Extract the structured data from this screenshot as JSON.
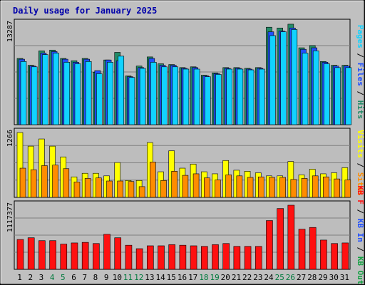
{
  "colors": {
    "background": "#c0c0c0",
    "plot": "#bdbdbd",
    "weekday_label": "#000000",
    "weekend_label": "#007a3d",
    "hits": "#238b67",
    "files": "#1f4fff",
    "pages": "#11d2ff",
    "visits": "#ffff00",
    "sites": "#ff8c00",
    "kbytes": "#ff1010"
  },
  "chart_data": [
    {
      "type": "bar",
      "title": "Daily usage for January 2025",
      "y_max_label": "13287",
      "ylim": [
        0,
        13287
      ],
      "right_axis_label": [
        {
          "text": "Pages",
          "color": "#11d2ff"
        },
        {
          "text": " / ",
          "color": "#000000"
        },
        {
          "text": "Files",
          "color": "#1f4fff"
        },
        {
          "text": " / ",
          "color": "#000000"
        },
        {
          "text": "Hits",
          "color": "#238b67"
        }
      ],
      "series": [
        {
          "name": "Hits",
          "values": [
            8700,
            7800,
            9700,
            9800,
            8700,
            8400,
            8700,
            6900,
            8500,
            9500,
            6400,
            7700,
            8900,
            8000,
            7900,
            7500,
            7600,
            6500,
            6800,
            7500,
            7500,
            7400,
            7500,
            12800,
            12700,
            13200,
            10100,
            10400,
            8300,
            7800,
            7800
          ]
        },
        {
          "name": "Files",
          "values": [
            8600,
            7700,
            9400,
            9600,
            8600,
            8200,
            8600,
            7100,
            8500,
            8400,
            6300,
            7500,
            8700,
            7800,
            7800,
            7400,
            7500,
            6400,
            6700,
            7400,
            7400,
            7300,
            7400,
            12200,
            12300,
            12700,
            9900,
            10100,
            8200,
            7700,
            7700
          ]
        },
        {
          "name": "Pages",
          "values": [
            8300,
            7600,
            9200,
            9400,
            8200,
            8000,
            8300,
            6700,
            8200,
            9000,
            6200,
            7400,
            8200,
            7600,
            7600,
            7300,
            7300,
            6300,
            6600,
            7300,
            7300,
            7200,
            7300,
            11700,
            12200,
            12500,
            9400,
            9700,
            8000,
            7500,
            7500
          ]
        }
      ]
    },
    {
      "type": "bar",
      "y_max_label": "1266",
      "ylim": [
        0,
        1266
      ],
      "right_axis_label": [
        {
          "text": "Visits",
          "color": "#ffff00"
        },
        {
          "text": " / ",
          "color": "#000000"
        },
        {
          "text": "Sites",
          "color": "#ff8c00"
        }
      ],
      "series": [
        {
          "name": "Visits",
          "values": [
            1266,
            1000,
            1140,
            1000,
            790,
            400,
            470,
            470,
            420,
            680,
            330,
            330,
            1070,
            500,
            910,
            570,
            650,
            500,
            460,
            720,
            530,
            510,
            480,
            420,
            420,
            700,
            440,
            550,
            460,
            480,
            580
          ]
        },
        {
          "name": "Sites",
          "values": [
            570,
            540,
            620,
            630,
            560,
            300,
            370,
            380,
            320,
            320,
            310,
            210,
            690,
            330,
            510,
            430,
            460,
            380,
            340,
            440,
            420,
            390,
            400,
            390,
            390,
            350,
            370,
            420,
            400,
            360,
            340
          ]
        }
      ]
    },
    {
      "type": "bar",
      "y_max_label": "1117377",
      "ylim": [
        0,
        1117377
      ],
      "right_axis_label": [
        {
          "text": "KB F",
          "color": "#ff1010"
        },
        {
          "text": " / ",
          "color": "#000000"
        },
        {
          "text": "KB In",
          "color": "#1f4fff"
        },
        {
          "text": " / ",
          "color": "#000000"
        },
        {
          "text": "KB Out",
          "color": "#11a040"
        }
      ],
      "series": [
        {
          "name": "KB F",
          "values": [
            520000,
            550000,
            500000,
            500000,
            440000,
            460000,
            470000,
            450000,
            610000,
            550000,
            420000,
            360000,
            410000,
            410000,
            430000,
            420000,
            410000,
            400000,
            430000,
            450000,
            400000,
            400000,
            400000,
            850000,
            1060000,
            1117377,
            700000,
            730000,
            510000,
            450000,
            460000
          ]
        }
      ]
    }
  ],
  "days": [
    "1",
    "2",
    "3",
    "4",
    "5",
    "6",
    "7",
    "8",
    "9",
    "10",
    "11",
    "12",
    "13",
    "14",
    "15",
    "16",
    "17",
    "18",
    "19",
    "20",
    "21",
    "22",
    "23",
    "24",
    "25",
    "26",
    "27",
    "28",
    "29",
    "30",
    "31"
  ],
  "weekends": [
    "4",
    "5",
    "11",
    "12",
    "18",
    "19",
    "25",
    "26"
  ]
}
